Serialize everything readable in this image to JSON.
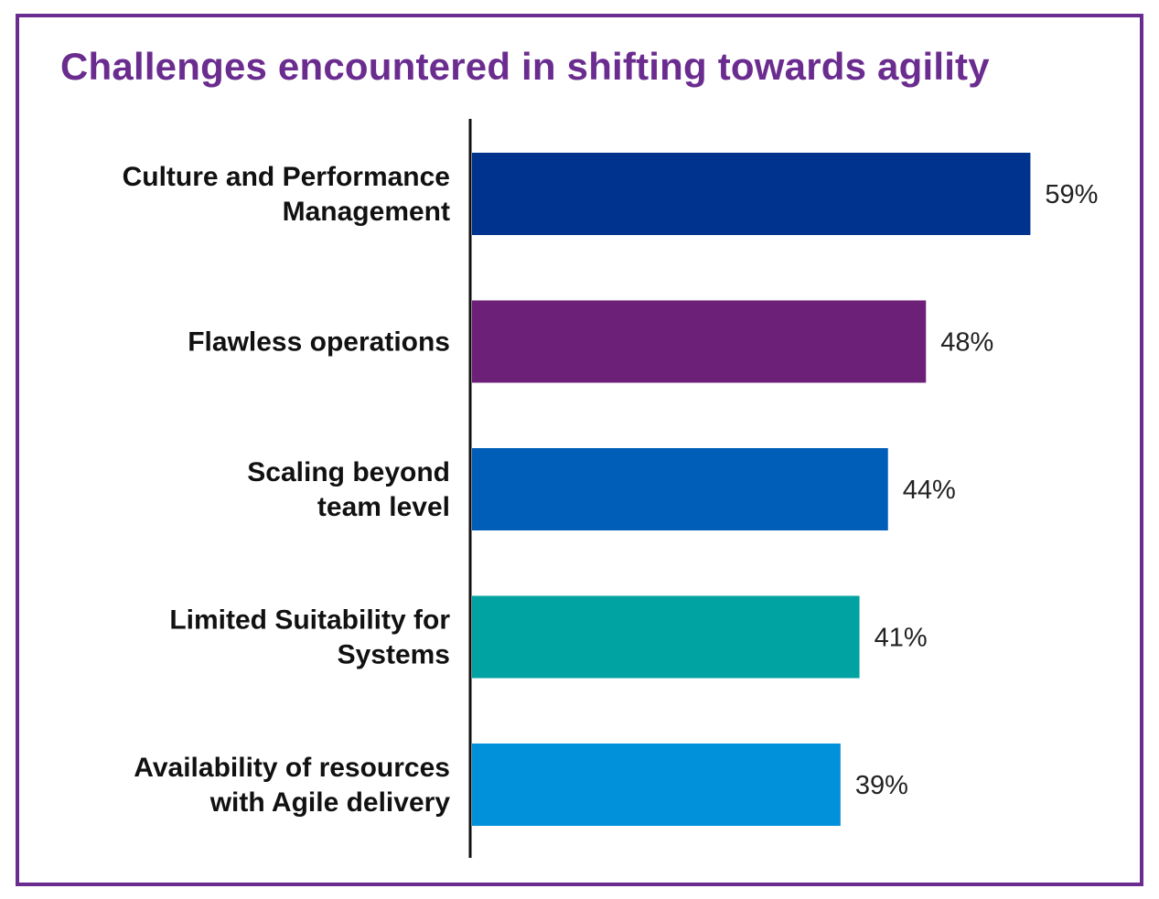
{
  "chart_data": {
    "type": "bar",
    "orientation": "horizontal",
    "title": "Challenges encountered in shifting towards agility",
    "categories": [
      [
        "Culture and Performance",
        "Management"
      ],
      [
        "Flawless operations"
      ],
      [
        "Scaling beyond",
        "team level"
      ],
      [
        "Limited Suitability for",
        "Systems"
      ],
      [
        "Availability of resources",
        "with Agile delivery"
      ]
    ],
    "values": [
      59,
      48,
      44,
      41,
      39
    ],
    "value_labels": [
      "59%",
      "48%",
      "44%",
      "41%",
      "39%"
    ],
    "bar_colors": [
      "#00338d",
      "#6d2077",
      "#005eb8",
      "#00a3a1",
      "#0091da"
    ],
    "xlim": [
      0,
      100
    ],
    "grid": false,
    "legend": "none"
  },
  "colors": {
    "frame": "#6b2c8f",
    "title": "#6b2c8f",
    "axis": "#111111"
  }
}
